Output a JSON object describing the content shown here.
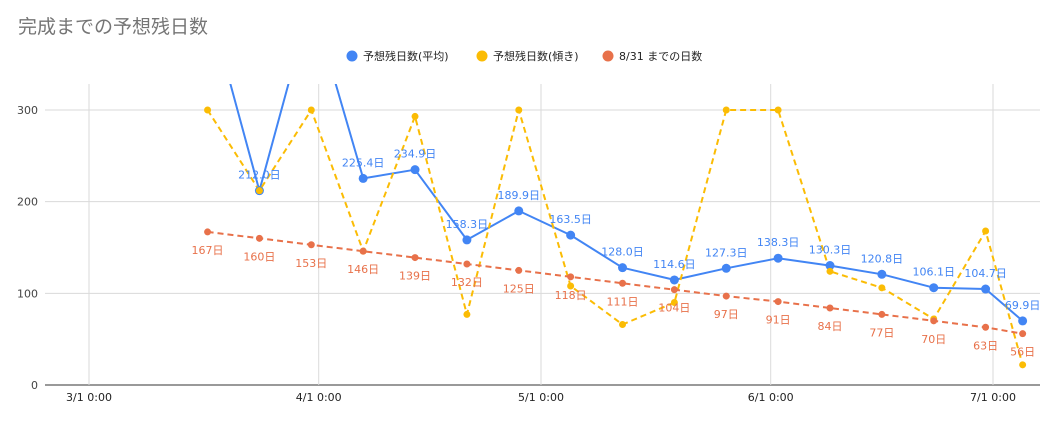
{
  "chart_data": {
    "type": "line",
    "title": "完成までの予想残日数",
    "xlabel": "",
    "ylabel": "",
    "x_ticks": [
      "3/1 0:00",
      "4/1 0:00",
      "5/1 0:00",
      "6/1 0:00",
      "7/1 0:00"
    ],
    "y_ticks": [
      "0",
      "100",
      "200",
      "300"
    ],
    "ylim": [
      0,
      300
    ],
    "grid": true,
    "legend_position": "top",
    "dates": [
      "2022-03-17",
      "2022-03-24",
      "2022-03-31",
      "2022-04-07",
      "2022-04-14",
      "2022-04-21",
      "2022-04-28",
      "2022-05-05",
      "2022-05-12",
      "2022-05-19",
      "2022-05-26",
      "2022-06-02",
      "2022-06-09",
      "2022-06-16",
      "2022-06-23",
      "2022-06-30",
      "2022-07-05"
    ],
    "series": [
      {
        "name": "予想残日数(平均)",
        "color": "#4285f4",
        "dash": false,
        "values": [
          null,
          212.0,
          null,
          225.4,
          234.9,
          158.3,
          189.9,
          163.5,
          128.0,
          114.6,
          127.3,
          138.3,
          130.3,
          120.8,
          106.1,
          104.7,
          69.9
        ],
        "labels": [
          "",
          "212.0日",
          "",
          "225.4日",
          "234.9日",
          "158.3日",
          "189.9日",
          "163.5日",
          "128.0日",
          "114.6日",
          "127.3日",
          "138.3日",
          "130.3日",
          "120.8日",
          "106.1日",
          "104.7日",
          "69.9日"
        ]
      },
      {
        "name": "予想残日数(傾き)",
        "color": "#fbbc04",
        "dash": true,
        "values": [
          300,
          212,
          300,
          146,
          293,
          77,
          300,
          108,
          66,
          90,
          300,
          300,
          124,
          106,
          72,
          168,
          22
        ],
        "labels": []
      },
      {
        "name": "8/31 までの日数",
        "color": "#e8714a",
        "dash": true,
        "values": [
          167,
          160,
          153,
          146,
          139,
          132,
          125,
          118,
          111,
          104,
          97,
          91,
          84,
          77,
          70,
          63,
          56
        ],
        "labels": [
          "167日",
          "160日",
          "153日",
          "146日",
          "139日",
          "132日",
          "125日",
          "118日",
          "111日",
          "104日",
          "97日",
          "91日",
          "84日",
          "77日",
          "70日",
          "63日",
          "56日"
        ]
      }
    ]
  }
}
